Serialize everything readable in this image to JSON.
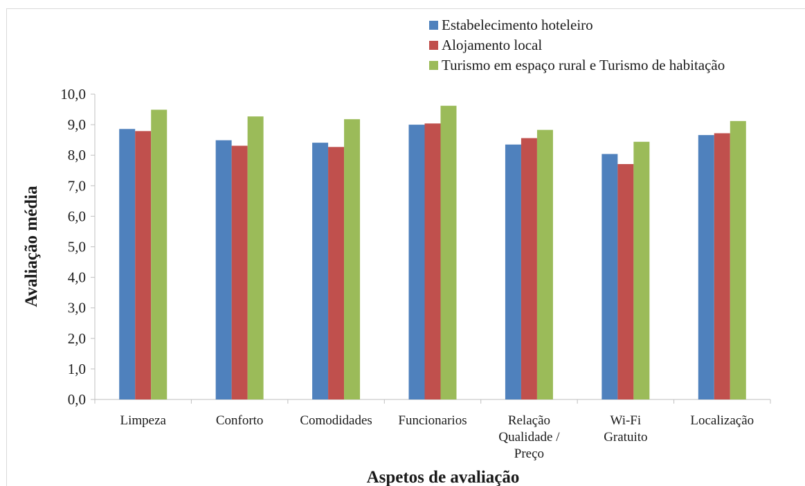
{
  "chart_data": {
    "type": "bar",
    "categories": [
      [
        "Limpeza"
      ],
      [
        "Conforto"
      ],
      [
        "Comodidades"
      ],
      [
        "Funcionarios"
      ],
      [
        "Relação",
        "Qualidade /",
        "Preço"
      ],
      [
        "Wi-Fi",
        "Gratuito"
      ],
      [
        "Localização"
      ]
    ],
    "series": [
      {
        "name": "Estabelecimento hoteleiro",
        "color": "#4f81bd",
        "values": [
          8.86,
          8.49,
          8.41,
          9.0,
          8.35,
          8.04,
          8.66
        ]
      },
      {
        "name": "Alojamento local",
        "color": "#c0504d",
        "values": [
          8.79,
          8.31,
          8.27,
          9.04,
          8.56,
          7.71,
          8.72
        ]
      },
      {
        "name": "Turismo em espaço rural e Turismo de habitação",
        "color": "#9bbb59",
        "values": [
          9.49,
          9.27,
          9.18,
          9.62,
          8.83,
          8.44,
          9.12
        ]
      }
    ],
    "xlabel": "Aspetos de avaliação",
    "ylabel": "Avaliação média",
    "ylim": [
      0,
      10
    ],
    "yticks": [
      "0,0",
      "1,0",
      "2,0",
      "3,0",
      "4,0",
      "5,0",
      "6,0",
      "7,0",
      "8,0",
      "9,0",
      "10,0"
    ],
    "grid": false,
    "legend_position": "top-right"
  }
}
